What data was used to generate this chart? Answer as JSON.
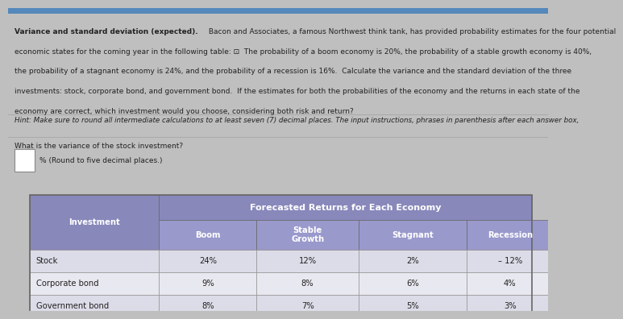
{
  "title_bold": "Variance and standard deviation (expected).",
  "title_rest": " Bacon and Associates, a famous Northwest think tank, has provided probability estimates for the four potential economic states for the coming year in the following table: ⊡  The probability of a boom economy is 20%, the probability of a stable growth economy is 40%, the probability of a stagnant economy is 24%, and the probability of a recession is 16%.  Calculate the variance and the standard deviation of the three investments: stock, corporate bond, and government bond.  If the estimates for both the probabilities of the economy and the returns in each state of the economy are correct, which investment would you choose, considering both risk and return?",
  "line1_bold": "Variance and standard deviation (expected).",
  "line1_rest": " Bacon and Associates, a famous Northwest think tank, has provided probability estimates for the four potential",
  "line2": "economic states for the coming year in the following table: ⊡  The probability of a boom economy is 20%, the probability of a stable growth economy is 40%,",
  "line3": "the probability of a stagnant economy is 24%, and the probability of a recession is 16%.  Calculate the variance and the standard deviation of the three",
  "line4": "investments: stock, corporate bond, and government bond.  If the estimates for both the probabilities of the economy and the returns in each state of the",
  "line5": "economy are correct, which investment would you choose, considering both risk and return?",
  "hint": "Hint: Make sure to round all intermediate calculations to at least seven (7) decimal places. The input instructions, phrases in parenthesis after each answer box,",
  "question": "What is the variance of the stock investment?",
  "answer_suffix": "% (Round to five decimal places.)",
  "table_title": "Forecasted Returns for Each Economy",
  "col0_header": "Investment",
  "col_headers": [
    "Boom",
    "Stable\nGrowth",
    "Stagnant",
    "Recession"
  ],
  "rows": [
    [
      "Stock",
      "24%",
      "12%",
      "2%",
      "– 12%"
    ],
    [
      "Corporate bond",
      "9%",
      "8%",
      "6%",
      "4%"
    ],
    [
      "Government bond",
      "8%",
      "7%",
      "5%",
      "3%"
    ]
  ],
  "top_bar_color": "#5588bb",
  "top_panel_bg": "#e8e8e0",
  "bottom_panel_bg": "#c0bfbf",
  "table_outer_bg": "#c0bfbf",
  "header_bg": "#8888bb",
  "subheader_bg": "#9999cc",
  "row_bg_odd": "#dcdce8",
  "row_bg_even": "#e8e8f0",
  "header_text": "#ffffff",
  "body_text": "#222222",
  "border_dark": "#666666",
  "border_light": "#888888",
  "title_fontsize": 6.5,
  "body_fontsize": 6.5,
  "hint_fontsize": 6.3,
  "question_fontsize": 6.5,
  "table_title_fontsize": 8.0,
  "table_header_fontsize": 7.2,
  "table_body_fontsize": 7.2
}
